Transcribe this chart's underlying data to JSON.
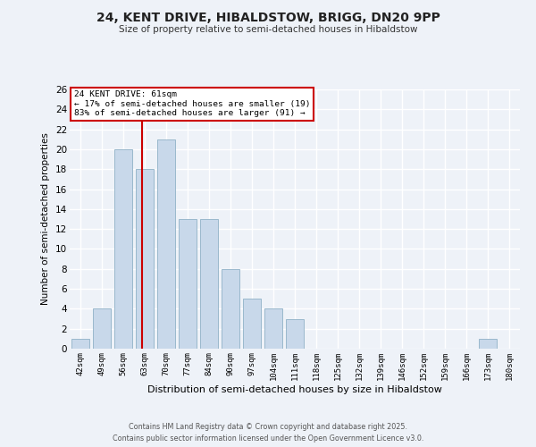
{
  "title": "24, KENT DRIVE, HIBALDSTOW, BRIGG, DN20 9PP",
  "subtitle": "Size of property relative to semi-detached houses in Hibaldstow",
  "bar_labels": [
    "42sqm",
    "49sqm",
    "56sqm",
    "63sqm",
    "70sqm",
    "77sqm",
    "84sqm",
    "90sqm",
    "97sqm",
    "104sqm",
    "111sqm",
    "118sqm",
    "125sqm",
    "132sqm",
    "139sqm",
    "146sqm",
    "152sqm",
    "159sqm",
    "166sqm",
    "173sqm",
    "180sqm"
  ],
  "bar_values": [
    1,
    4,
    20,
    18,
    21,
    13,
    13,
    8,
    5,
    4,
    3,
    0,
    0,
    0,
    0,
    0,
    0,
    0,
    0,
    1,
    0
  ],
  "bar_color": "#c8d8ea",
  "bar_edge_color": "#9ab8cc",
  "background_color": "#eef2f8",
  "grid_color": "#ffffff",
  "xlabel": "Distribution of semi-detached houses by size in Hibaldstow",
  "ylabel": "Number of semi-detached properties",
  "ylim": [
    0,
    26
  ],
  "yticks": [
    0,
    2,
    4,
    6,
    8,
    10,
    12,
    14,
    16,
    18,
    20,
    22,
    24,
    26
  ],
  "property_line_x": 2.86,
  "property_line_label": "24 KENT DRIVE: 61sqm",
  "annotation_line1": "← 17% of semi-detached houses are smaller (19)",
  "annotation_line2": "83% of semi-detached houses are larger (91) →",
  "annotation_box_color": "#ffffff",
  "annotation_box_edge_color": "#cc0000",
  "property_line_color": "#cc0000",
  "footer_line1": "Contains HM Land Registry data © Crown copyright and database right 2025.",
  "footer_line2": "Contains public sector information licensed under the Open Government Licence v3.0."
}
